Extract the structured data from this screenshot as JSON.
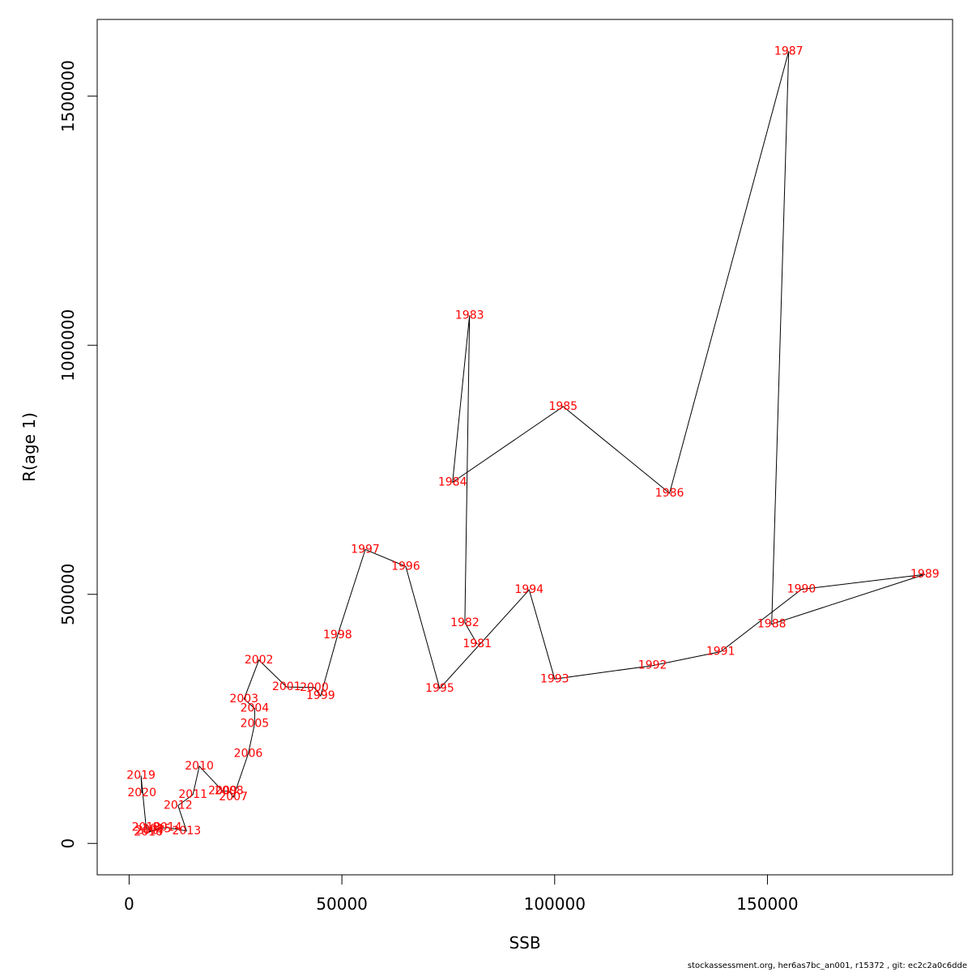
{
  "chart_data": {
    "type": "line",
    "xlabel": "SSB",
    "ylabel": "R(age 1)",
    "xlim": [
      -7500,
      193500
    ],
    "ylim": [
      -63000,
      1654000
    ],
    "xticks": [
      0,
      50000,
      100000,
      150000
    ],
    "yticks": [
      0,
      500000,
      1000000,
      1500000
    ],
    "points": [
      {
        "year": "1981",
        "x": 81800,
        "y": 400000
      },
      {
        "year": "1982",
        "x": 78900,
        "y": 443000
      },
      {
        "year": "1983",
        "x": 80000,
        "y": 1060000
      },
      {
        "year": "1984",
        "x": 76000,
        "y": 725000
      },
      {
        "year": "1985",
        "x": 102000,
        "y": 877000
      },
      {
        "year": "1986",
        "x": 127000,
        "y": 703000
      },
      {
        "year": "1987",
        "x": 155000,
        "y": 1590000
      },
      {
        "year": "1988",
        "x": 151000,
        "y": 440000
      },
      {
        "year": "1989",
        "x": 187000,
        "y": 540000
      },
      {
        "year": "1990",
        "x": 158000,
        "y": 510000
      },
      {
        "year": "1991",
        "x": 139000,
        "y": 385000
      },
      {
        "year": "1992",
        "x": 123000,
        "y": 357000
      },
      {
        "year": "1993",
        "x": 100000,
        "y": 330000
      },
      {
        "year": "1994",
        "x": 94000,
        "y": 509000
      },
      {
        "year": "1995",
        "x": 73000,
        "y": 311000
      },
      {
        "year": "1996",
        "x": 65000,
        "y": 556000
      },
      {
        "year": "1997",
        "x": 55500,
        "y": 590000
      },
      {
        "year": "1998",
        "x": 49000,
        "y": 418000
      },
      {
        "year": "1999",
        "x": 45000,
        "y": 296000
      },
      {
        "year": "2000",
        "x": 43500,
        "y": 313000
      },
      {
        "year": "2001",
        "x": 37000,
        "y": 314000
      },
      {
        "year": "2002",
        "x": 30500,
        "y": 368000
      },
      {
        "year": "2003",
        "x": 27000,
        "y": 290000
      },
      {
        "year": "2004",
        "x": 29500,
        "y": 271000
      },
      {
        "year": "2005",
        "x": 29500,
        "y": 240000
      },
      {
        "year": "2006",
        "x": 28000,
        "y": 180000
      },
      {
        "year": "2007",
        "x": 24500,
        "y": 93000
      },
      {
        "year": "2008",
        "x": 23500,
        "y": 105000
      },
      {
        "year": "2009",
        "x": 22000,
        "y": 105000
      },
      {
        "year": "2010",
        "x": 16500,
        "y": 155000
      },
      {
        "year": "2011",
        "x": 15000,
        "y": 98000
      },
      {
        "year": "2012",
        "x": 11500,
        "y": 76000
      },
      {
        "year": "2013",
        "x": 13500,
        "y": 25000
      },
      {
        "year": "2014",
        "x": 9000,
        "y": 32000
      },
      {
        "year": "2015",
        "x": 6500,
        "y": 29000
      },
      {
        "year": "2016",
        "x": 4500,
        "y": 22000
      },
      {
        "year": "2017",
        "x": 5000,
        "y": 26000
      },
      {
        "year": "2018",
        "x": 4000,
        "y": 32000
      },
      {
        "year": "2019",
        "x": 2800,
        "y": 136000
      },
      {
        "year": "2020",
        "x": 3000,
        "y": 101000
      }
    ]
  },
  "footer": "stockassessment.org, her6as7bc_an001, r15372 , git: ec2c2a0c6dde"
}
